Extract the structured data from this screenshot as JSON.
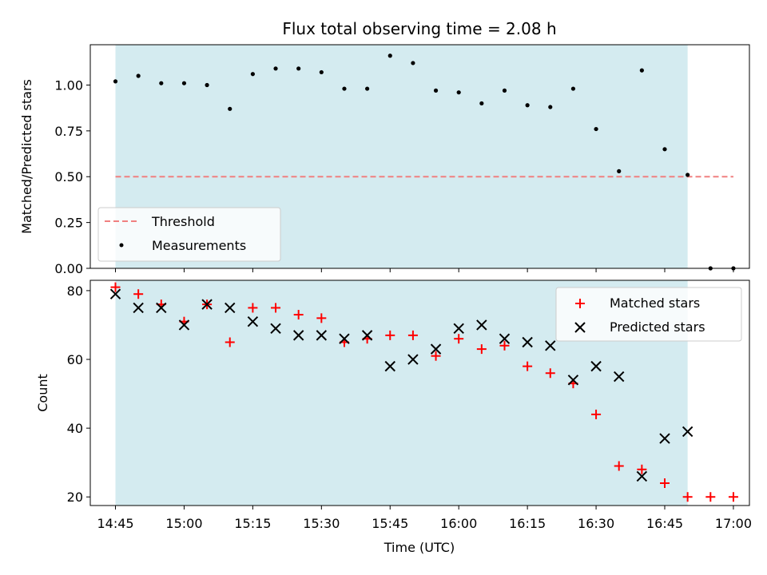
{
  "chart_data": [
    {
      "type": "scatter",
      "title": "Flux total observing time = 2.08 h",
      "ylabel": "Matched/Predicted stars",
      "ylim": [
        0,
        1.22
      ],
      "yticks": [
        "0.00",
        "0.25",
        "0.50",
        "0.75",
        "1.00"
      ],
      "ytick_values": [
        0,
        0.25,
        0.5,
        0.75,
        1.0
      ],
      "threshold": {
        "name": "Threshold",
        "value": 0.5,
        "x_start": "14:45",
        "x_end": "17:00",
        "color": "#f08080"
      },
      "shaded_region": {
        "x_start": "14:45",
        "x_end": "16:50",
        "color": "#d4ebf0"
      },
      "legend": {
        "position": "lower-left",
        "entries": [
          "Threshold",
          "Measurements"
        ]
      },
      "series": [
        {
          "name": "Measurements",
          "marker": "dot",
          "color": "#000000",
          "x": [
            "14:45",
            "14:50",
            "14:55",
            "15:00",
            "15:05",
            "15:10",
            "15:15",
            "15:20",
            "15:25",
            "15:30",
            "15:35",
            "15:40",
            "15:45",
            "15:50",
            "15:55",
            "16:00",
            "16:05",
            "16:10",
            "16:15",
            "16:20",
            "16:25",
            "16:30",
            "16:35",
            "16:40",
            "16:45",
            "16:50",
            "16:55",
            "17:00"
          ],
          "values": [
            1.02,
            1.05,
            1.01,
            1.01,
            1.0,
            0.87,
            1.06,
            1.09,
            1.09,
            1.07,
            0.98,
            0.98,
            1.16,
            1.12,
            0.97,
            0.96,
            0.9,
            0.97,
            0.89,
            0.88,
            0.98,
            0.76,
            0.53,
            1.08,
            0.65,
            0.51,
            0.0,
            0.0
          ]
        }
      ]
    },
    {
      "type": "scatter",
      "xlabel": "Time (UTC)",
      "ylabel": "Count",
      "ylim": [
        17.5,
        83
      ],
      "yticks": [
        "20",
        "40",
        "60",
        "80"
      ],
      "ytick_values": [
        20,
        40,
        60,
        80
      ],
      "xticks": [
        "14:45",
        "15:00",
        "15:15",
        "15:30",
        "15:45",
        "16:00",
        "16:15",
        "16:30",
        "16:45",
        "17:00"
      ],
      "shaded_region": {
        "x_start": "14:45",
        "x_end": "16:50",
        "color": "#d4ebf0"
      },
      "legend": {
        "position": "upper-right",
        "entries": [
          "Matched stars",
          "Predicted stars"
        ]
      },
      "series": [
        {
          "name": "Matched stars",
          "marker": "plus",
          "color": "#ff0000",
          "x": [
            "14:45",
            "14:50",
            "14:55",
            "15:00",
            "15:05",
            "15:10",
            "15:15",
            "15:20",
            "15:25",
            "15:30",
            "15:35",
            "15:40",
            "15:45",
            "15:50",
            "15:55",
            "16:00",
            "16:05",
            "16:10",
            "16:15",
            "16:20",
            "16:25",
            "16:30",
            "16:35",
            "16:40",
            "16:45",
            "16:50",
            "16:55",
            "17:00"
          ],
          "values": [
            81,
            79,
            76,
            71,
            76,
            65,
            75,
            75,
            73,
            72,
            65,
            66,
            67,
            67,
            61,
            66,
            63,
            64,
            58,
            56,
            53,
            44,
            29,
            28,
            24,
            20,
            20,
            20
          ]
        },
        {
          "name": "Predicted stars",
          "marker": "x",
          "color": "#000000",
          "x": [
            "14:45",
            "14:50",
            "14:55",
            "15:00",
            "15:05",
            "15:10",
            "15:15",
            "15:20",
            "15:25",
            "15:30",
            "15:35",
            "15:40",
            "15:45",
            "15:50",
            "15:55",
            "16:00",
            "16:05",
            "16:10",
            "16:15",
            "16:20",
            "16:25",
            "16:30",
            "16:35",
            "16:40",
            "16:45",
            "16:50"
          ],
          "values": [
            79,
            75,
            75,
            70,
            76,
            75,
            71,
            69,
            67,
            67,
            66,
            67,
            58,
            60,
            63,
            69,
            70,
            66,
            65,
            64,
            54,
            58,
            55,
            26,
            37,
            39
          ]
        }
      ]
    }
  ]
}
